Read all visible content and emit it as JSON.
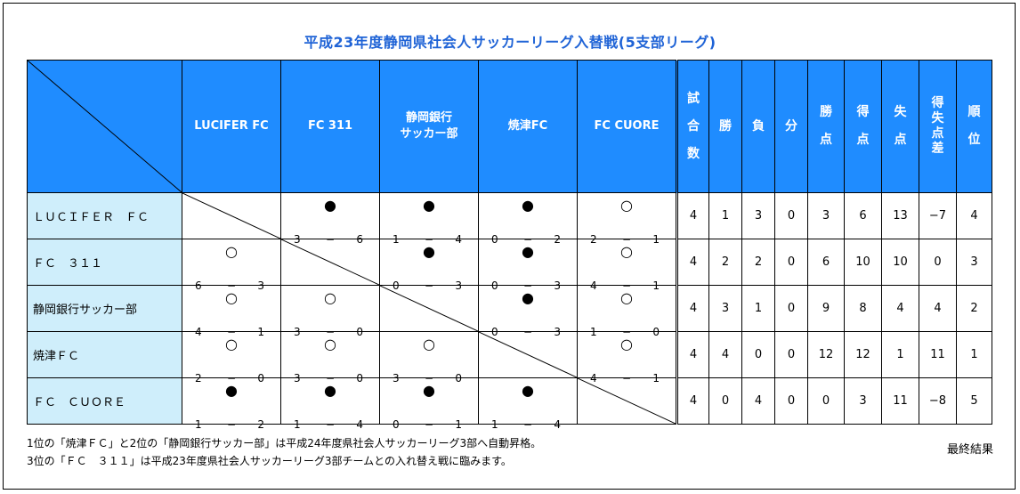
{
  "title": "平成23年度静岡県社会人サッカーリーグ入替戦(5支部リーグ)",
  "columns": {
    "teams": [
      "LUCIFER FC",
      "FC 311",
      "静岡銀行サッカー部",
      "焼津FC",
      "FC CUORE"
    ],
    "teams_display": [
      "LUCIFER FC",
      "FC 311",
      "静岡銀行\nサッカー部",
      "焼津FC",
      "FC CUORE"
    ],
    "stats": [
      "試合数",
      "勝",
      "負",
      "分",
      "勝点",
      "得点",
      "失点",
      "得失点差",
      "順位"
    ]
  },
  "rows": [
    {
      "name": "ＬＵＣＩＦＥＲ　ＦＣ",
      "results": [
        null,
        {
          "mark": "●",
          "score_for": "3",
          "score_against": "6"
        },
        {
          "mark": "●",
          "score_for": "1",
          "score_against": "4"
        },
        {
          "mark": "●",
          "score_for": "0",
          "score_against": "2"
        },
        {
          "mark": "○",
          "score_for": "2",
          "score_against": "1"
        }
      ],
      "stats": [
        "4",
        "1",
        "3",
        "0",
        "3",
        "6",
        "13",
        "−7",
        "4"
      ]
    },
    {
      "name": "ＦＣ　３１１",
      "results": [
        {
          "mark": "○",
          "score_for": "6",
          "score_against": "3"
        },
        null,
        {
          "mark": "●",
          "score_for": "0",
          "score_against": "3"
        },
        {
          "mark": "●",
          "score_for": "0",
          "score_against": "3"
        },
        {
          "mark": "○",
          "score_for": "4",
          "score_against": "1"
        }
      ],
      "stats": [
        "4",
        "2",
        "2",
        "0",
        "6",
        "10",
        "10",
        "0",
        "3"
      ]
    },
    {
      "name": "静岡銀行サッカー部",
      "results": [
        {
          "mark": "○",
          "score_for": "4",
          "score_against": "1"
        },
        {
          "mark": "○",
          "score_for": "3",
          "score_against": "0"
        },
        null,
        {
          "mark": "●",
          "score_for": "0",
          "score_against": "3"
        },
        {
          "mark": "○",
          "score_for": "1",
          "score_against": "0"
        }
      ],
      "stats": [
        "4",
        "3",
        "1",
        "0",
        "9",
        "8",
        "4",
        "4",
        "2"
      ]
    },
    {
      "name": "焼津ＦＣ",
      "results": [
        {
          "mark": "○",
          "score_for": "2",
          "score_against": "0"
        },
        {
          "mark": "○",
          "score_for": "3",
          "score_against": "0"
        },
        {
          "mark": "○",
          "score_for": "3",
          "score_against": "0"
        },
        null,
        {
          "mark": "○",
          "score_for": "4",
          "score_against": "1"
        }
      ],
      "stats": [
        "4",
        "4",
        "0",
        "0",
        "12",
        "12",
        "1",
        "11",
        "1"
      ]
    },
    {
      "name": "ＦＣ　ＣＵＯＲＥ",
      "results": [
        {
          "mark": "●",
          "score_for": "1",
          "score_against": "2"
        },
        {
          "mark": "●",
          "score_for": "1",
          "score_against": "4"
        },
        {
          "mark": "●",
          "score_for": "0",
          "score_against": "1"
        },
        {
          "mark": "●",
          "score_for": "1",
          "score_against": "4"
        },
        null
      ],
      "stats": [
        "4",
        "0",
        "4",
        "0",
        "0",
        "3",
        "11",
        "−8",
        "5"
      ]
    }
  ],
  "dash": "−",
  "notes": [
    "1位の「焼津ＦＣ」と2位の「静岡銀行サッカー部」は平成24年度県社会人サッカーリーグ3部へ自動昇格。",
    "3位の「ＦＣ　３１１」は平成23年度県社会人サッカーリーグ3部チームとの入れ替え戦に臨みます。"
  ],
  "final_label": "最終結果",
  "colors": {
    "header_bg": "#1f8cff",
    "rowname_bg": "#cfeefb",
    "title": "#1f63d6"
  }
}
